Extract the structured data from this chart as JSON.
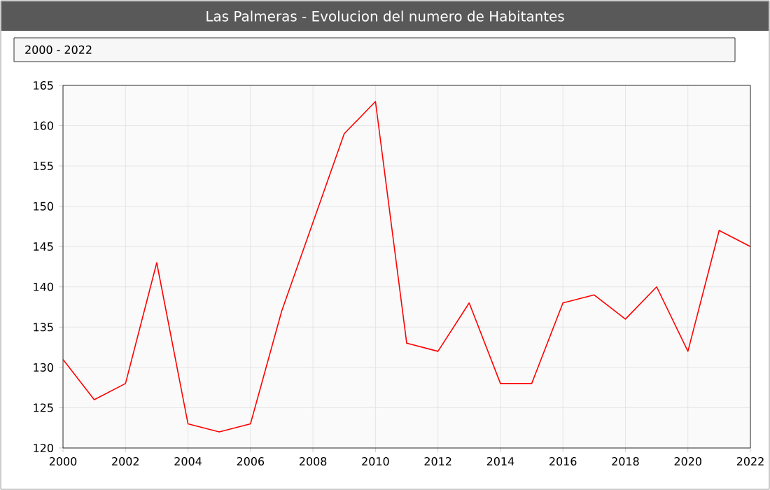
{
  "chart_data": {
    "type": "line",
    "title": "Las Palmeras - Evolucion del numero de Habitantes",
    "subtitle": "2000 - 2022",
    "x": [
      2000,
      2001,
      2002,
      2003,
      2004,
      2005,
      2006,
      2007,
      2008,
      2009,
      2010,
      2011,
      2012,
      2013,
      2014,
      2015,
      2016,
      2017,
      2018,
      2019,
      2020,
      2021,
      2022
    ],
    "series": [
      {
        "color": "#ff0000",
        "values": [
          131,
          126,
          128,
          143,
          123,
          122,
          123,
          137,
          148,
          159,
          163,
          133,
          132,
          138,
          128,
          128,
          138,
          139,
          136,
          140,
          132,
          147,
          145
        ]
      }
    ],
    "xlim": [
      2000,
      2022
    ],
    "ylim": [
      120,
      165
    ],
    "xticks": [
      2000,
      2002,
      2004,
      2006,
      2008,
      2010,
      2012,
      2014,
      2016,
      2018,
      2020,
      2022
    ],
    "yticks": [
      120,
      125,
      130,
      135,
      140,
      145,
      150,
      155,
      160,
      165
    ],
    "grid": true,
    "marker": "none",
    "line_style": "solid"
  }
}
